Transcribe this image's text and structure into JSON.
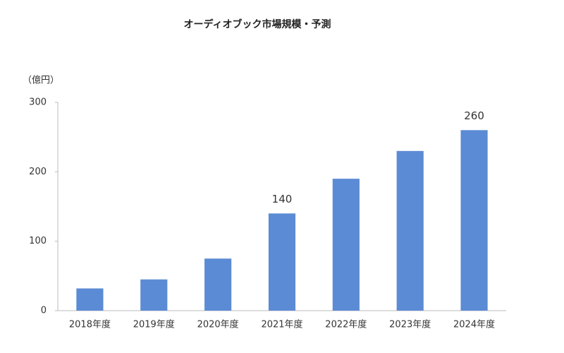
{
  "chart_data": {
    "type": "bar",
    "title": "オーディオブック市場規模・予測",
    "y_label": "（億円）",
    "categories": [
      "2018年度",
      "2019年度",
      "2020年度",
      "2021年度",
      "2022年度",
      "2023年度",
      "2024年度"
    ],
    "values": [
      32,
      45,
      75,
      140,
      190,
      230,
      260
    ],
    "value_labels": [
      null,
      null,
      null,
      "140",
      null,
      null,
      "260"
    ],
    "color": "#5b8bd4",
    "ylim": [
      0,
      300
    ],
    "yticks": [
      0,
      100,
      200,
      300
    ],
    "grid": false
  }
}
